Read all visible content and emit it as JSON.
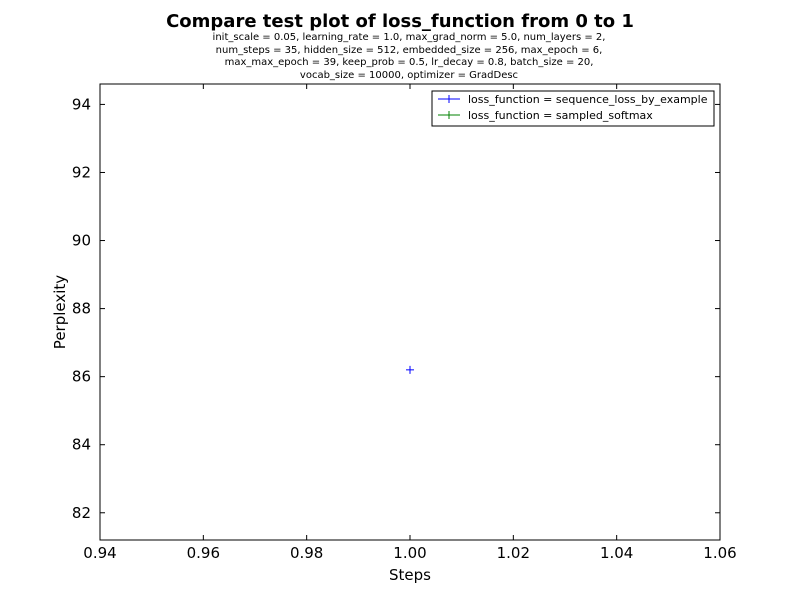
{
  "chart_data": {
    "type": "scatter",
    "title": "Compare test plot of loss_function from 0 to 1",
    "subtitle": [
      "init_scale = 0.05, learning_rate = 1.0, max_grad_norm = 5.0, num_layers = 2,",
      "num_steps = 35, hidden_size = 512, embedded_size = 256, max_epoch = 6,",
      "max_max_epoch = 39, keep_prob = 0.5, lr_decay = 0.8, batch_size = 20,",
      "vocab_size = 10000, optimizer = GradDesc"
    ],
    "xlabel": "Steps",
    "ylabel": "Perplexity",
    "xlim": [
      0.94,
      1.06
    ],
    "ylim": [
      81.2,
      94.6
    ],
    "xticks": [
      0.94,
      0.96,
      0.98,
      1.0,
      1.02,
      1.04,
      1.06
    ],
    "xtick_labels": [
      "0.94",
      "0.96",
      "0.98",
      "1.00",
      "1.02",
      "1.04",
      "1.06"
    ],
    "yticks": [
      82,
      84,
      86,
      88,
      90,
      92,
      94
    ],
    "ytick_labels": [
      "82",
      "84",
      "86",
      "88",
      "90",
      "92",
      "94"
    ],
    "grid": false,
    "legend_position": "top-right",
    "series": [
      {
        "name": "loss_function = sequence_loss_by_example",
        "color": "#0000ff",
        "marker": "plus",
        "points": [
          {
            "x": 1.0,
            "y": 86.2
          }
        ]
      },
      {
        "name": "loss_function = sampled_softmax",
        "color": "#008000",
        "marker": "plus",
        "points": []
      }
    ]
  }
}
